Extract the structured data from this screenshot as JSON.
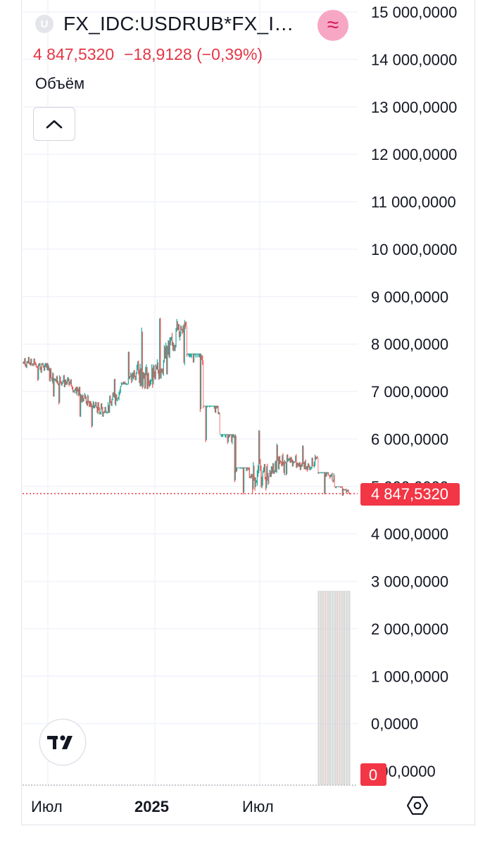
{
  "header": {
    "symbol_badge": "U",
    "symbol_title": "FX_IDC:USDRUB*FX_I…",
    "indicator_icon": "approx-icon",
    "last_price": "4 847,5320",
    "change": "−18,9128 (−0,39%)",
    "volume_label": "Объём",
    "up_color": "#26a69a",
    "down_color": "#ef5350",
    "price_color": "#e53645"
  },
  "price_axis": {
    "labels": [
      "15 000,0000",
      "14 000,0000",
      "13 000,0000",
      "12 000,0000",
      "11 000,0000",
      "10 000,0000",
      "9 000,0000",
      "8 000,0000",
      "7 000,0000",
      "6 000,0000",
      "5 000,0000",
      "4 000,0000",
      "3 000,0000",
      "2 000,0000",
      "1 000,0000",
      "0,0000",
      "000,0000"
    ],
    "current_price_tag": "4 847,5320",
    "volume_tag": "0"
  },
  "time_axis": {
    "labels": [
      "Июл",
      "2025",
      "Июл"
    ]
  },
  "chart_data": {
    "type": "candlestick",
    "title": "",
    "x": [
      "2024-05",
      "2024-06",
      "2024-07",
      "2024-08",
      "2024-09",
      "2024-10",
      "2024-11",
      "2024-12",
      "2025-01",
      "2025-02",
      "2025-03",
      "2025-04",
      "2025-05",
      "2025-06",
      "2025-07",
      "2025-08",
      "2025-09",
      "2025-10",
      "2025-11",
      "2025-12"
    ],
    "close": [
      7600,
      7300,
      7150,
      6800,
      6550,
      7050,
      7400,
      7250,
      7900,
      8550,
      7700,
      6600,
      5900,
      5200,
      5250,
      5600,
      5400,
      5550,
      5100,
      4847.532
    ],
    "high": [
      7750,
      7600,
      7350,
      7100,
      6800,
      7350,
      7900,
      8400,
      8700,
      8600,
      7800,
      6700,
      6100,
      5400,
      6300,
      5950,
      5700,
      5900,
      5300,
      5000
    ],
    "low": [
      7200,
      6800,
      6700,
      6400,
      6200,
      6550,
      7150,
      7050,
      7200,
      7500,
      6500,
      5900,
      5000,
      4800,
      4850,
      5200,
      5200,
      5300,
      4800,
      4780
    ],
    "ylim": [
      -1000,
      15000
    ],
    "last_value": 4847.532,
    "volume_visible_from": "2025-11"
  }
}
